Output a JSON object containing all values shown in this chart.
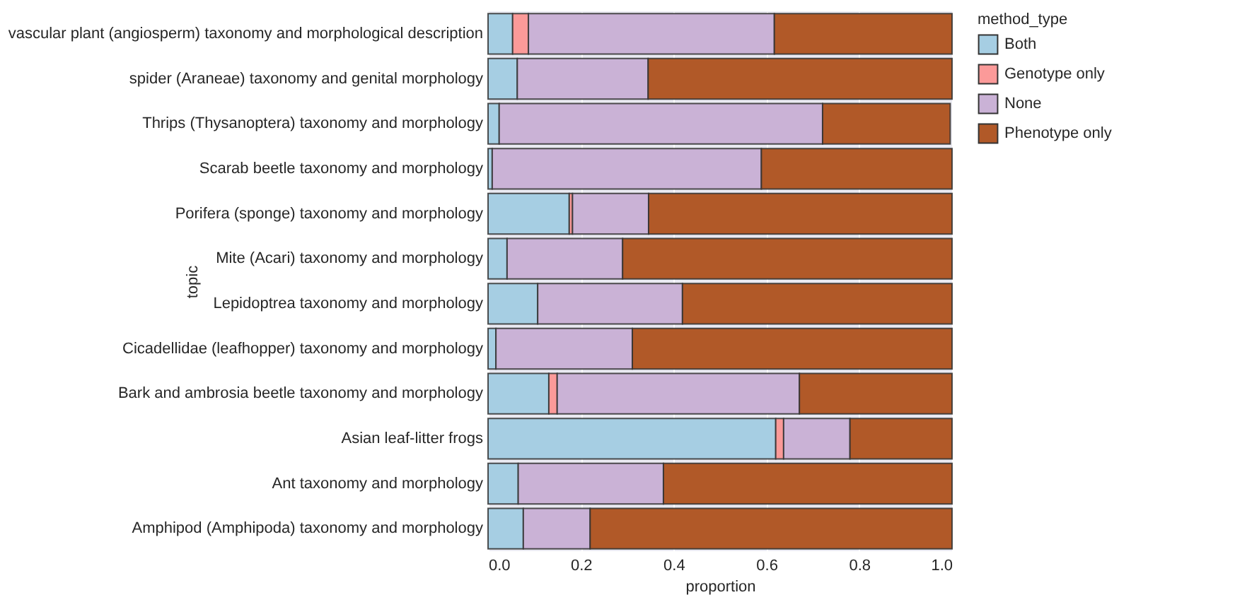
{
  "chart_data": {
    "type": "bar",
    "orientation": "horizontal",
    "stacked": true,
    "xlabel": "proportion",
    "ylabel": "topic",
    "legend_title": "method_type",
    "legend": "top right",
    "grid": "x",
    "categories": [
      "vascular plant (angiosperm) taxonomy and morphological description",
      "spider (Araneae) taxonomy and genital morphology",
      "Thrips (Thysanoptera) taxonomy and morphology",
      "Scarab beetle taxonomy and morphology",
      "Porifera (sponge) taxonomy and morphology",
      "Mite (Acari) taxonomy and morphology",
      "Lepidoptrea taxonomy and morphology",
      "Cicadellidae (leafhopper) taxonomy and morphology",
      "Bark and ambrosia beetle taxonomy and morphology",
      "Asian leaf-litter frogs",
      "Ant taxonomy and morphology",
      "Amphipod (Amphipoda) taxonomy and morphology"
    ],
    "xlim": [
      0,
      1
    ],
    "xticks": [
      {
        "value": 0,
        "label": "0.0"
      },
      0.2,
      0.4,
      0.6,
      0.8,
      {
        "value": 1,
        "label": "1.0"
      }
    ],
    "series": [
      {
        "name": "Both",
        "color": "#a6cee3",
        "values": [
          0.053,
          0.063,
          0.024,
          0.009,
          0.175,
          0.041,
          0.107,
          0.017,
          0.131,
          0.62,
          0.065,
          0.076
        ]
      },
      {
        "name": "Genotype only",
        "color": "#fb9a99",
        "values": [
          0.034,
          0,
          null,
          0,
          0.007,
          0,
          0,
          0,
          0.018,
          0.017,
          0,
          0
        ]
      },
      {
        "name": "None",
        "color": "#cab2d6",
        "values": [
          0.53,
          0.282,
          0.697,
          0.58,
          0.164,
          0.249,
          0.312,
          0.294,
          0.522,
          0.143,
          0.313,
          0.144
        ]
      },
      {
        "name": "Phenotype only",
        "color": "#b15928",
        "values": [
          0.383,
          0.655,
          0.275,
          0.411,
          0.654,
          0.71,
          0.581,
          0.689,
          0.329,
          0.22,
          0.622,
          0.78
        ]
      }
    ]
  }
}
